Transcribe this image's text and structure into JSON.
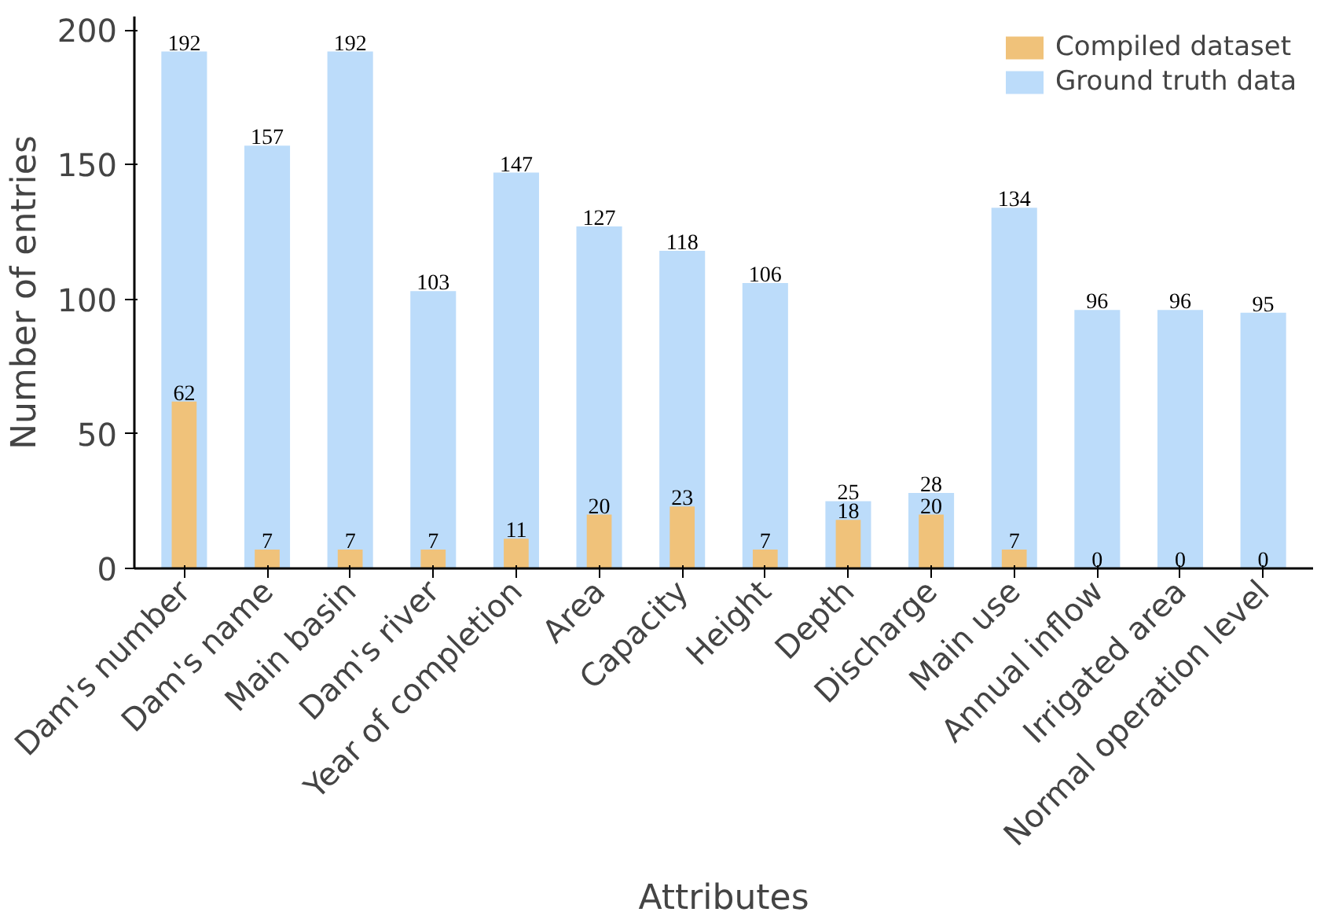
{
  "chart_data": {
    "type": "bar",
    "xlabel": "Attributes",
    "ylabel": "Number of entries",
    "categories": [
      "Dam's number",
      "Dam's name",
      "Main basin",
      "Dam's river",
      "Year of completion",
      "Area",
      "Capacity",
      "Height",
      "Depth",
      "Discharge",
      "Main use",
      "Annual inflow",
      "Irrigated area",
      "Normal operation level"
    ],
    "series": [
      {
        "name": "Compiled dataset",
        "color": "#f0c27a",
        "values": [
          62,
          7,
          7,
          7,
          11,
          20,
          23,
          7,
          18,
          20,
          7,
          0,
          0,
          0
        ]
      },
      {
        "name": "Ground truth data",
        "color": "#bcdcfa",
        "values": [
          192,
          157,
          192,
          103,
          147,
          127,
          118,
          106,
          25,
          28,
          134,
          96,
          96,
          95
        ]
      }
    ],
    "ylim": [
      0,
      205
    ],
    "yticks": [
      0,
      50,
      100,
      150,
      200
    ],
    "data_labels": true,
    "legend": "top right",
    "grid": false
  }
}
